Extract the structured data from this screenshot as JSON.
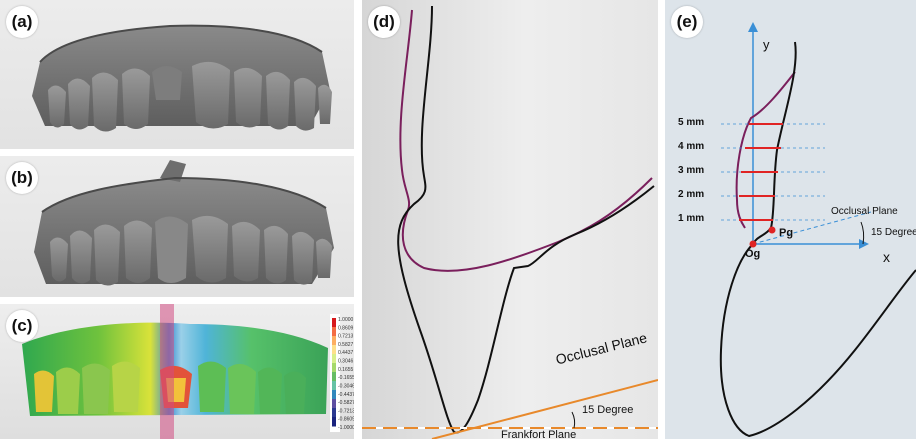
{
  "panels": {
    "a": {
      "label": "(a)"
    },
    "b": {
      "label": "(b)"
    },
    "c": {
      "label": "(c)",
      "color_scale": [
        "1.0000",
        "0.8609",
        "0.7213",
        "0.5827",
        "0.4437",
        "0.3046",
        "0.1655",
        "-0.1655",
        "-0.3046",
        "-0.4437",
        "-0.5827",
        "-0.7213",
        "-0.8609",
        "-1.0000"
      ],
      "scale_colors": [
        "#d7191c",
        "#f46d43",
        "#fdae61",
        "#fee08b",
        "#d9ef8b",
        "#a6d96a",
        "#66bd63",
        "#66c2a5",
        "#3288bd",
        "#5e4fa2",
        "#2b3990",
        "#1a237e"
      ]
    },
    "d": {
      "label": "(d)",
      "occlusal_plane": "Occlusal Plane",
      "angle": "15 Degree",
      "frankfort_plane": "Frankfort Plane",
      "colors": {
        "profile_a": "#7a1f5c",
        "profile_b": "#111111",
        "plane": "#e8892b"
      }
    },
    "e": {
      "label": "(e)",
      "y_axis": "y",
      "x_axis": "x",
      "levels": [
        "5 mm",
        "4 mm",
        "3 mm",
        "2 mm",
        "1 mm"
      ],
      "occlusal_plane": "Occlusal Plane",
      "angle": "15 Degree",
      "point_pg": "Pg",
      "point_og": "Og",
      "colors": {
        "axis": "#3a8fd6",
        "levels": "#e02424",
        "profile_a": "#7a1f5c",
        "profile_b": "#111111",
        "points": "#e02424"
      }
    }
  }
}
